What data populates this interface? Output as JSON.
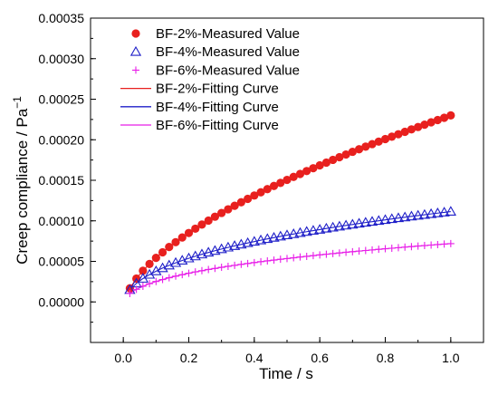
{
  "chart_data": {
    "type": "scatter",
    "title": "",
    "xlabel": "Time / s",
    "ylabel": "Creep compliance / Pa",
    "ylabel_superscript": "−1",
    "xlim": [
      -0.1,
      1.1
    ],
    "ylim": [
      -5e-05,
      0.00035
    ],
    "x_ticks": [
      "0.0",
      "0.2",
      "0.4",
      "0.6",
      "0.8",
      "1.0"
    ],
    "y_ticks": [
      "0.00000",
      "0.00005",
      "0.00010",
      "0.00015",
      "0.00020",
      "0.00025",
      "0.00030",
      "0.00035"
    ],
    "grid": false,
    "legend_position": "top-left",
    "x": [
      0.02,
      0.04,
      0.06,
      0.08,
      0.1,
      0.12,
      0.14,
      0.16,
      0.18,
      0.2,
      0.22,
      0.24,
      0.26,
      0.28,
      0.3,
      0.32,
      0.34,
      0.36,
      0.38,
      0.4,
      0.42,
      0.44,
      0.46,
      0.48,
      0.5,
      0.52,
      0.54,
      0.56,
      0.58,
      0.6,
      0.62,
      0.64,
      0.66,
      0.68,
      0.7,
      0.72,
      0.74,
      0.76,
      0.78,
      0.8,
      0.82,
      0.84,
      0.86,
      0.88,
      0.9,
      0.92,
      0.94,
      0.96,
      0.98,
      1.0
    ],
    "series": [
      {
        "name": "BF-2%-Measured Value",
        "marker": "filled-circle",
        "color": "#e8201e",
        "values": [
          1.68e-05,
          2.88e-05,
          3.84e-05,
          4.68e-05,
          5.43e-05,
          6.12e-05,
          6.77e-05,
          7.37e-05,
          7.95e-05,
          8.5e-05,
          9.03e-05,
          9.54e-05,
          0.0001003,
          0.0001051,
          0.0001097,
          0.0001142,
          0.0001186,
          0.0001229,
          0.0001271,
          0.0001312,
          0.0001352,
          0.0001391,
          0.000143,
          0.0001468,
          0.0001505,
          0.0001542,
          0.0001578,
          0.0001614,
          0.0001649,
          0.0001684,
          0.0001718,
          0.0001752,
          0.0001785,
          0.0001818,
          0.0001851,
          0.0001883,
          0.0001915,
          0.0001946,
          0.0001977,
          0.0002008,
          0.0002038,
          0.0002068,
          0.0002098,
          0.0002128,
          0.0002157,
          0.0002186,
          0.0002215,
          0.0002243,
          0.0002271,
          0.00023
        ]
      },
      {
        "name": "BF-4%-Measured Value",
        "marker": "open-triangle",
        "color": "#1f1fc8",
        "values": [
          1.49e-05,
          2.29e-05,
          2.88e-05,
          3.37e-05,
          3.79e-05,
          4.17e-05,
          4.51e-05,
          4.82e-05,
          5.11e-05,
          5.38e-05,
          5.63e-05,
          5.87e-05,
          6.1e-05,
          6.31e-05,
          6.52e-05,
          6.72e-05,
          6.91e-05,
          7.09e-05,
          7.27e-05,
          7.44e-05,
          7.61e-05,
          7.77e-05,
          7.93e-05,
          8.08e-05,
          8.23e-05,
          8.37e-05,
          8.52e-05,
          8.66e-05,
          8.79e-05,
          8.92e-05,
          9.06e-05,
          9.18e-05,
          9.31e-05,
          9.43e-05,
          9.55e-05,
          9.67e-05,
          9.79e-05,
          9.9e-05,
          0.0001001,
          0.0001012,
          0.0001023,
          0.0001034,
          0.0001044,
          0.0001055,
          0.0001065,
          0.0001075,
          0.0001085,
          0.0001095,
          0.0001104,
          0.0001114
        ]
      },
      {
        "name": "BF-6%-Measured Value",
        "marker": "plus",
        "color": "#e81ee8",
        "values": [
          1.04e-05,
          1.55e-05,
          1.93e-05,
          2.25e-05,
          2.52e-05,
          2.76e-05,
          2.98e-05,
          3.18e-05,
          3.36e-05,
          3.54e-05,
          3.7e-05,
          3.85e-05,
          4e-05,
          4.13e-05,
          4.27e-05,
          4.39e-05,
          4.51e-05,
          4.63e-05,
          4.74e-05,
          4.85e-05,
          4.96e-05,
          5.06e-05,
          5.16e-05,
          5.26e-05,
          5.35e-05,
          5.44e-05,
          5.54e-05,
          5.62e-05,
          5.71e-05,
          5.8e-05,
          5.88e-05,
          5.96e-05,
          6.04e-05,
          6.12e-05,
          6.19e-05,
          6.27e-05,
          6.34e-05,
          6.41e-05,
          6.49e-05,
          6.56e-05,
          6.62e-05,
          6.69e-05,
          6.76e-05,
          6.82e-05,
          6.89e-05,
          6.95e-05,
          7.01e-05,
          7.07e-05,
          7.13e-05,
          7.19e-05
        ]
      }
    ],
    "fitting_curves": [
      {
        "name": "BF-2%-Fitting Curve",
        "color": "#e8201e"
      },
      {
        "name": "BF-4%-Fitting Curve",
        "color": "#1f1fc8"
      },
      {
        "name": "BF-6%-Fitting Curve",
        "color": "#e81ee8"
      }
    ]
  }
}
